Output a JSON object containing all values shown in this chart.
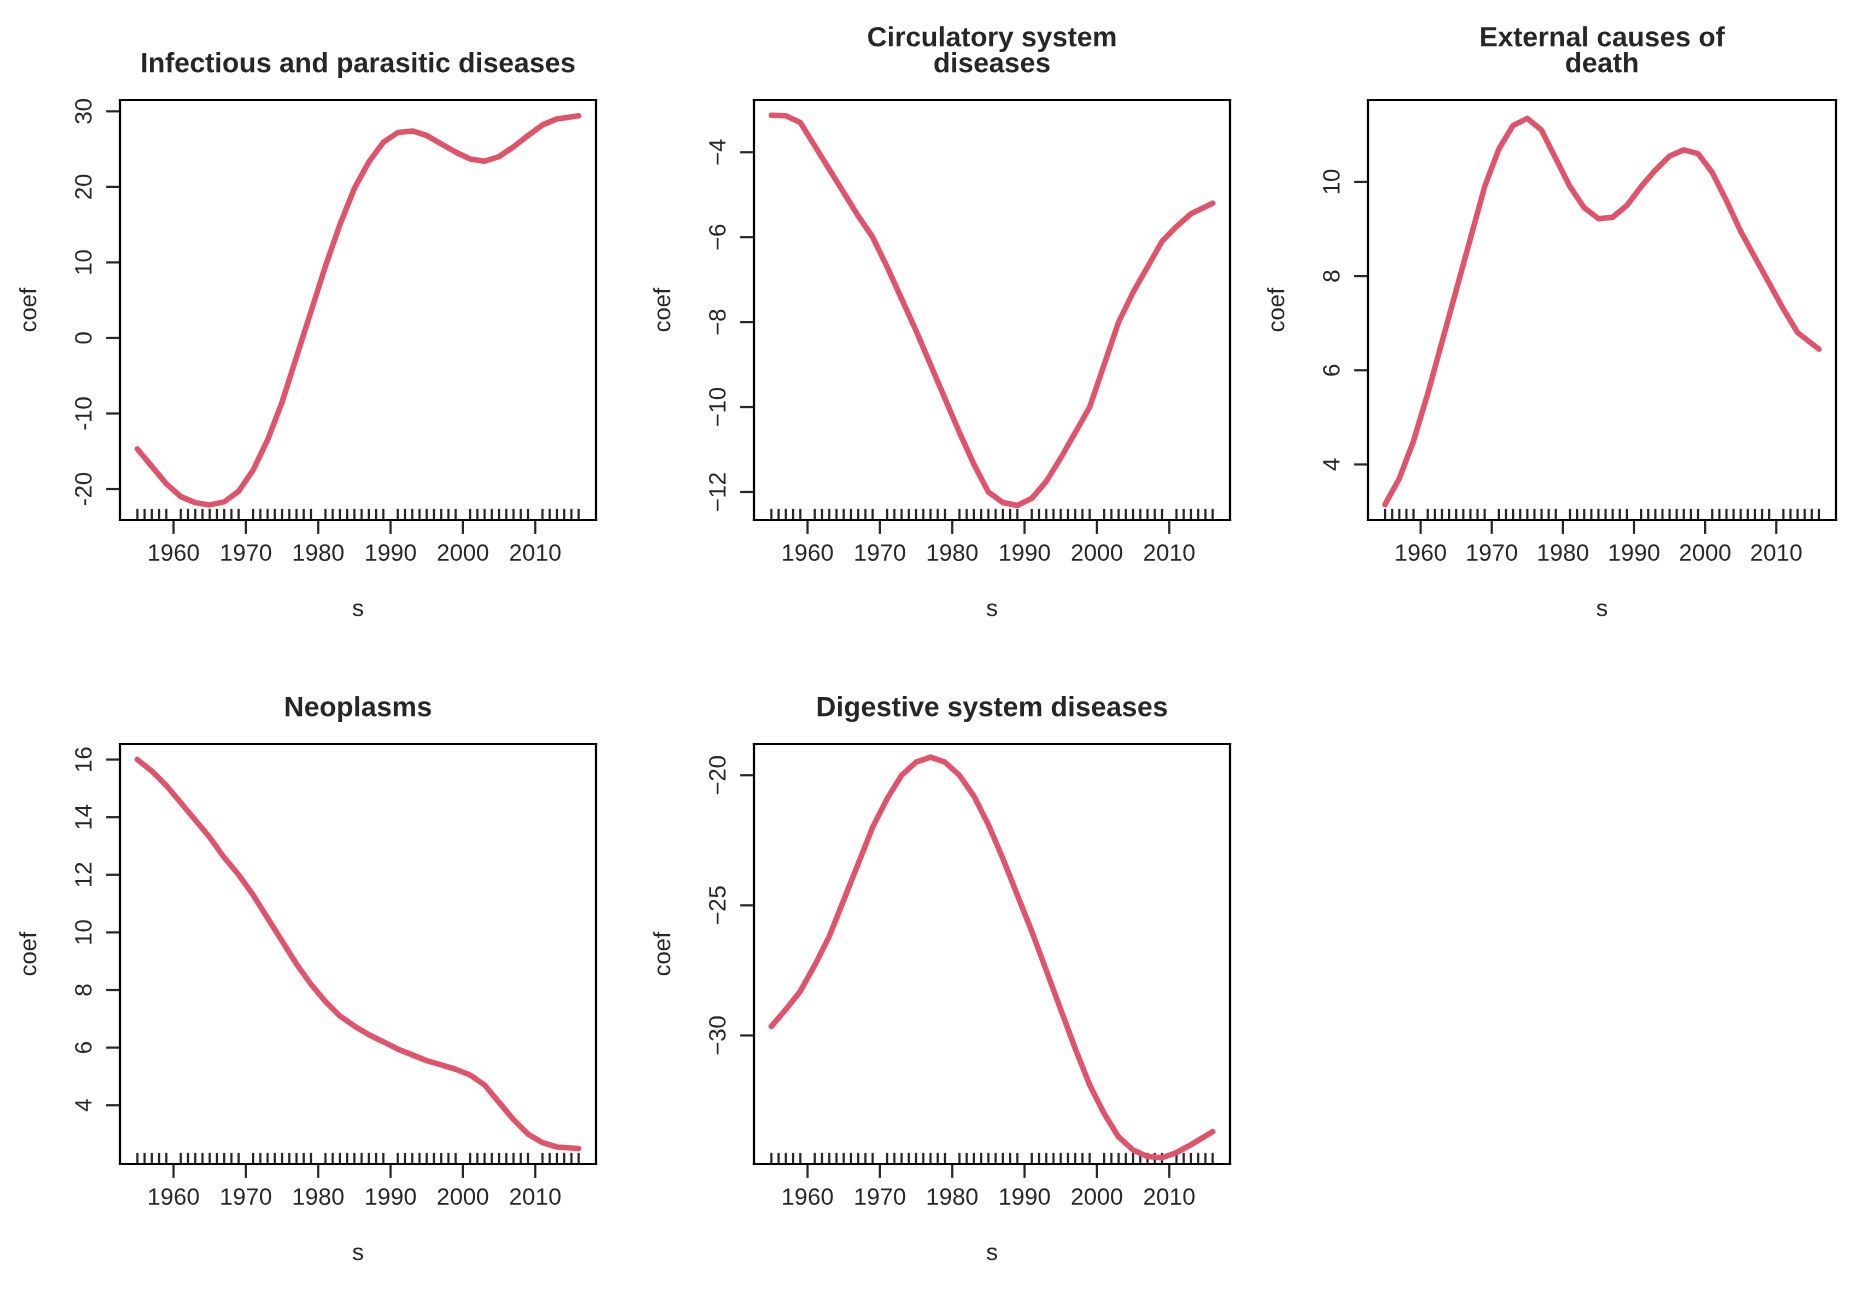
{
  "chart_data": [
    {
      "type": "line",
      "title": "Infectious and parasitic diseases",
      "xlabel": "s",
      "ylabel": "coef",
      "xlim": [
        1952.6,
        2018.4
      ],
      "xticks": [
        1960,
        1970,
        1980,
        1990,
        2000,
        2010
      ],
      "ylim": [
        -24.1,
        31.5
      ],
      "yticks": [
        -20,
        -10,
        0,
        10,
        20,
        30
      ],
      "grid": false,
      "legend": false,
      "x": [
        1955,
        1957,
        1959,
        1961,
        1963,
        1965,
        1967,
        1969,
        1971,
        1973,
        1975,
        1977,
        1979,
        1981,
        1983,
        1985,
        1987,
        1989,
        1991,
        1993,
        1995,
        1997,
        1999,
        2001,
        2003,
        2005,
        2007,
        2009,
        2011,
        2013,
        2016
      ],
      "series": [
        {
          "color": "#df536b",
          "values": [
            -14.7,
            -17,
            -19.3,
            -21,
            -21.8,
            -22.1,
            -21.7,
            -20.3,
            -17.5,
            -13.5,
            -8.5,
            -2.5,
            3.5,
            9.5,
            15,
            19.8,
            23.3,
            25.9,
            27.2,
            27.4,
            26.8,
            25.7,
            24.6,
            23.7,
            23.4,
            24,
            25.3,
            26.8,
            28.2,
            29,
            29.4
          ]
        }
      ]
    },
    {
      "type": "line",
      "title": "Circulatory system\ndiseases",
      "xlabel": "s",
      "ylabel": "coef",
      "xlim": [
        1952.6,
        2018.4
      ],
      "xticks": [
        1960,
        1970,
        1980,
        1990,
        2000,
        2010
      ],
      "ylim": [
        -12.66,
        -2.77
      ],
      "yticks": [
        {
          "value": -12,
          "label": "−12"
        },
        {
          "value": -10,
          "label": "−10"
        },
        {
          "value": -8,
          "label": "−8"
        },
        {
          "value": -6,
          "label": "−6"
        },
        {
          "value": -4,
          "label": "−4"
        }
      ],
      "grid": false,
      "legend": false,
      "x": [
        1955,
        1957,
        1959,
        1961,
        1963,
        1965,
        1967,
        1969,
        1971,
        1973,
        1975,
        1977,
        1979,
        1981,
        1983,
        1985,
        1987,
        1989,
        1991,
        1993,
        1995,
        1997,
        1999,
        2001,
        2003,
        2005,
        2007,
        2009,
        2011,
        2013,
        2016
      ],
      "series": [
        {
          "color": "#df536b",
          "values": [
            -3.13,
            -3.14,
            -3.3,
            -3.85,
            -4.4,
            -4.95,
            -5.5,
            -6.0,
            -6.7,
            -7.45,
            -8.2,
            -9.0,
            -9.8,
            -10.6,
            -11.35,
            -12.0,
            -12.25,
            -12.32,
            -12.15,
            -11.75,
            -11.2,
            -10.6,
            -10.0,
            -9.0,
            -8.0,
            -7.3,
            -6.7,
            -6.1,
            -5.75,
            -5.45,
            -5.2
          ]
        }
      ]
    },
    {
      "type": "line",
      "title": "External causes of\ndeath",
      "xlabel": "s",
      "ylabel": "coef",
      "xlim": [
        1952.6,
        2018.4
      ],
      "xticks": [
        1960,
        1970,
        1980,
        1990,
        2000,
        2010
      ],
      "ylim": [
        2.82,
        11.74
      ],
      "yticks": [
        4,
        6,
        8,
        10
      ],
      "grid": false,
      "legend": false,
      "x": [
        1955,
        1957,
        1959,
        1961,
        1963,
        1965,
        1967,
        1969,
        1971,
        1973,
        1975,
        1977,
        1979,
        1981,
        1983,
        1985,
        1987,
        1989,
        1991,
        1993,
        1995,
        1997,
        1999,
        2001,
        2003,
        2005,
        2007,
        2009,
        2011,
        2013,
        2016
      ],
      "series": [
        {
          "color": "#df536b",
          "values": [
            3.15,
            3.7,
            4.5,
            5.5,
            6.6,
            7.7,
            8.8,
            9.9,
            10.7,
            11.2,
            11.35,
            11.1,
            10.5,
            9.9,
            9.45,
            9.22,
            9.25,
            9.5,
            9.9,
            10.25,
            10.55,
            10.68,
            10.6,
            10.2,
            9.6,
            8.95,
            8.4,
            7.85,
            7.3,
            6.8,
            6.45
          ]
        }
      ]
    },
    {
      "type": "line",
      "title": "Neoplasms",
      "xlabel": "s",
      "ylabel": "coef",
      "xlim": [
        1952.6,
        2018.4
      ],
      "xticks": [
        1960,
        1970,
        1980,
        1990,
        2000,
        2010
      ],
      "ylim": [
        1.96,
        16.54
      ],
      "yticks": [
        4,
        6,
        8,
        10,
        12,
        14,
        16
      ],
      "grid": false,
      "legend": false,
      "x": [
        1955,
        1957,
        1959,
        1961,
        1963,
        1965,
        1967,
        1969,
        1971,
        1973,
        1975,
        1977,
        1979,
        1981,
        1983,
        1985,
        1987,
        1989,
        1991,
        1993,
        1995,
        1997,
        1999,
        2001,
        2003,
        2005,
        2007,
        2009,
        2011,
        2013,
        2016
      ],
      "series": [
        {
          "color": "#df536b",
          "values": [
            16.0,
            15.6,
            15.1,
            14.5,
            13.9,
            13.3,
            12.6,
            12.0,
            11.3,
            10.5,
            9.7,
            8.9,
            8.2,
            7.6,
            7.1,
            6.75,
            6.45,
            6.2,
            5.95,
            5.75,
            5.55,
            5.4,
            5.25,
            5.05,
            4.7,
            4.1,
            3.5,
            3.0,
            2.7,
            2.55,
            2.5
          ]
        }
      ]
    },
    {
      "type": "line",
      "title": "Digestive system diseases",
      "xlabel": "s",
      "ylabel": "coef",
      "xlim": [
        1952.6,
        2018.4
      ],
      "xticks": [
        1960,
        1970,
        1980,
        1990,
        2000,
        2010
      ],
      "ylim": [
        -34.94,
        -18.8
      ],
      "yticks": [
        {
          "value": -30,
          "label": "−30"
        },
        {
          "value": -25,
          "label": "−25"
        },
        {
          "value": -20,
          "label": "−20"
        }
      ],
      "grid": false,
      "legend": false,
      "x": [
        1955,
        1957,
        1959,
        1961,
        1963,
        1965,
        1967,
        1969,
        1971,
        1973,
        1975,
        1977,
        1979,
        1981,
        1983,
        1985,
        1987,
        1989,
        1991,
        1993,
        1995,
        1997,
        1999,
        2001,
        2003,
        2005,
        2007,
        2009,
        2011,
        2013,
        2016
      ],
      "series": [
        {
          "color": "#df536b",
          "values": [
            -29.65,
            -29.0,
            -28.3,
            -27.3,
            -26.2,
            -24.8,
            -23.4,
            -22.0,
            -20.9,
            -20.0,
            -19.5,
            -19.3,
            -19.5,
            -20.0,
            -20.8,
            -21.9,
            -23.2,
            -24.6,
            -26.0,
            -27.5,
            -29.0,
            -30.5,
            -31.9,
            -33.0,
            -33.9,
            -34.4,
            -34.65,
            -34.7,
            -34.5,
            -34.2,
            -33.7
          ]
        }
      ]
    }
  ]
}
